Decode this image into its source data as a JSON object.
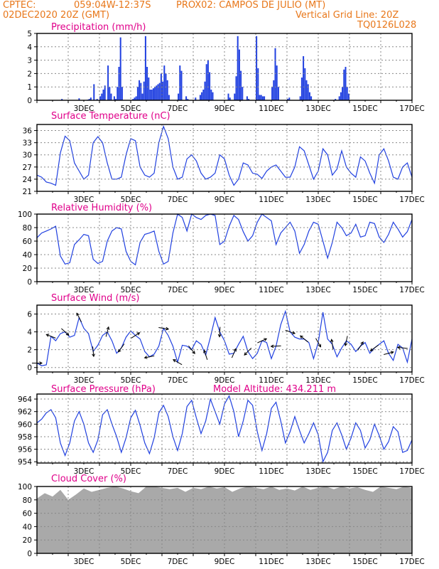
{
  "header": {
    "source": "CPTEC:",
    "coords": "059:04W-12:37S",
    "station": "PROX02: CAMPOS DE JULIO (MT)",
    "datetime": "02DEC2020 20Z (GMT)",
    "grid_note": "Vertical Grid Line: 20Z",
    "code": "TQ0126L028"
  },
  "x_labels": [
    "3DEC",
    "5DEC",
    "7DEC",
    "9DEC",
    "11DEC",
    "13DEC",
    "15DEC",
    "17DEC"
  ],
  "colors": {
    "header": "#e8771a",
    "title": "#e0008a",
    "series": "#2040e0",
    "cloud": "#a9a9a9",
    "grid": "#888888"
  },
  "chart_data": [
    {
      "type": "bar",
      "title": "Precipitation (mm/h)",
      "ylim": [
        0,
        5
      ],
      "yticks": [
        0,
        1,
        2,
        3,
        4,
        5
      ],
      "bars": [
        [
          1.6,
          0.1
        ],
        [
          2.7,
          0.15
        ],
        [
          3.25,
          0.05
        ],
        [
          3.35,
          0.1
        ],
        [
          3.45,
          0.2
        ],
        [
          3.65,
          1.2
        ],
        [
          3.85,
          0.1
        ],
        [
          4.05,
          0.3
        ],
        [
          4.15,
          0.5
        ],
        [
          4.25,
          0.8
        ],
        [
          4.35,
          1.1
        ],
        [
          4.55,
          2.6
        ],
        [
          4.65,
          1.0
        ],
        [
          4.75,
          0.5
        ],
        [
          4.95,
          0.3
        ],
        [
          5.05,
          0.1
        ],
        [
          5.15,
          1.0
        ],
        [
          5.25,
          2.5
        ],
        [
          5.35,
          4.7
        ],
        [
          5.45,
          1.0
        ],
        [
          6.15,
          0.1
        ],
        [
          6.25,
          0.2
        ],
        [
          6.35,
          0.3
        ],
        [
          6.45,
          1.0
        ],
        [
          6.55,
          1.5
        ],
        [
          6.65,
          1.3
        ],
        [
          6.75,
          0.5
        ],
        [
          6.85,
          1.4
        ],
        [
          6.95,
          4.8
        ],
        [
          7.05,
          2.5
        ],
        [
          7.15,
          1.7
        ],
        [
          7.25,
          0.8
        ],
        [
          7.35,
          0.8
        ],
        [
          7.45,
          0.9
        ],
        [
          7.55,
          1.0
        ],
        [
          7.65,
          1.1
        ],
        [
          7.75,
          1.2
        ],
        [
          7.85,
          1.3
        ],
        [
          7.95,
          2.0
        ],
        [
          8.05,
          1.4
        ],
        [
          8.15,
          2.6
        ],
        [
          8.25,
          2.0
        ],
        [
          8.35,
          1.5
        ],
        [
          8.45,
          0.4
        ],
        [
          9.05,
          0.5
        ],
        [
          9.15,
          2.6
        ],
        [
          9.25,
          2.2
        ],
        [
          9.55,
          0.3
        ],
        [
          9.65,
          0.1
        ],
        [
          10.15,
          0.2
        ],
        [
          10.45,
          0.4
        ],
        [
          10.55,
          0.6
        ],
        [
          10.65,
          0.8
        ],
        [
          10.75,
          1.4
        ],
        [
          10.85,
          2.7
        ],
        [
          10.95,
          3.0
        ],
        [
          11.05,
          2.1
        ],
        [
          11.15,
          0.8
        ],
        [
          11.25,
          0.6
        ],
        [
          12.25,
          0.5
        ],
        [
          12.35,
          0.2
        ],
        [
          12.65,
          0.5
        ],
        [
          12.75,
          1.8
        ],
        [
          12.85,
          4.8
        ],
        [
          12.95,
          3.8
        ],
        [
          13.05,
          2.2
        ],
        [
          13.15,
          1.0
        ],
        [
          13.45,
          0.3
        ],
        [
          13.55,
          0.1
        ],
        [
          14.05,
          4.8
        ],
        [
          14.15,
          2.4
        ],
        [
          14.25,
          0.4
        ],
        [
          14.35,
          0.4
        ],
        [
          14.45,
          0.3
        ],
        [
          14.55,
          0.3
        ],
        [
          15.05,
          1.0
        ],
        [
          15.15,
          1.5
        ],
        [
          15.25,
          3.9
        ],
        [
          15.35,
          2.6
        ],
        [
          15.45,
          1.0
        ],
        [
          16.05,
          0.1
        ],
        [
          16.15,
          0.2
        ],
        [
          16.85,
          0.3
        ],
        [
          16.95,
          1.7
        ],
        [
          17.05,
          3.3
        ],
        [
          17.15,
          2.4
        ],
        [
          17.25,
          1.5
        ],
        [
          17.35,
          1.2
        ],
        [
          17.45,
          0.6
        ],
        [
          17.55,
          0.3
        ],
        [
          19.1,
          0.1
        ],
        [
          19.35,
          0.3
        ],
        [
          19.45,
          0.6
        ],
        [
          19.55,
          1.0
        ],
        [
          19.65,
          2.3
        ],
        [
          19.75,
          2.5
        ],
        [
          19.85,
          1.0
        ],
        [
          19.95,
          0.5
        ]
      ]
    },
    {
      "type": "line",
      "title": "Surface Temperature (nC)",
      "ylim": [
        21,
        37.5
      ],
      "yticks": [
        21,
        24,
        27,
        30,
        33,
        36
      ],
      "x": [
        0.0,
        0.3,
        0.6,
        0.9,
        1.2,
        1.5,
        1.8,
        2.1,
        2.4,
        2.7,
        3.0,
        3.3,
        3.6,
        3.9,
        4.2,
        4.5,
        4.8,
        5.1,
        5.4,
        5.7,
        6.0,
        6.3,
        6.6,
        6.9,
        7.2,
        7.5,
        7.8,
        8.1,
        8.4,
        8.7,
        9.0,
        9.3,
        9.6,
        9.9,
        10.2,
        10.5,
        10.8,
        11.1,
        11.4,
        11.7,
        12.0,
        12.3,
        12.6,
        12.9,
        13.2,
        13.5,
        13.8,
        14.1,
        14.4,
        14.7,
        15.0,
        15.3,
        15.6,
        15.9,
        16.2,
        16.5,
        16.8,
        17.1,
        17.4,
        17.7,
        18.0,
        18.3,
        18.6,
        18.9,
        19.2,
        19.5,
        19.8,
        20.1,
        20.4,
        20.7,
        21.0,
        21.3,
        21.6,
        21.9,
        22.2,
        22.5,
        22.8,
        23.1,
        23.4,
        23.7,
        24.0
      ],
      "y": [
        25.0,
        24.5,
        23.3,
        23.0,
        22.5,
        30.5,
        34.6,
        33.5,
        28.0,
        26.0,
        24.0,
        25.0,
        33.0,
        34.5,
        33.0,
        28.0,
        24.0,
        24.0,
        24.5,
        30.0,
        34.0,
        33.5,
        27.0,
        25.0,
        24.5,
        25.5,
        33.0,
        37.0,
        34.0,
        27.0,
        24.0,
        24.5,
        29.0,
        30.0,
        28.5,
        25.5,
        24.0,
        24.5,
        25.5,
        30.0,
        29.0,
        25.0,
        22.5,
        24.0,
        28.0,
        27.5,
        25.5,
        25.2,
        24.2,
        26.0,
        27.0,
        27.5,
        26.0,
        24.5,
        24.5,
        27.0,
        32.0,
        31.0,
        27.5,
        24.0,
        26.0,
        31.5,
        30.0,
        25.0,
        26.5,
        31.0,
        27.0,
        25.5,
        24.5,
        29.5,
        28.5,
        25.5,
        23.0,
        30.0,
        31.5,
        28.5,
        24.5,
        24.0,
        27.0,
        28.0,
        24.5
      ]
    },
    {
      "type": "line",
      "title": "Relative Humidity (%)",
      "ylim": [
        0,
        100
      ],
      "yticks": [
        0,
        20,
        40,
        60,
        80,
        100
      ],
      "x": [
        0.0,
        0.3,
        0.6,
        0.9,
        1.2,
        1.5,
        1.8,
        2.1,
        2.4,
        2.7,
        3.0,
        3.3,
        3.6,
        3.9,
        4.2,
        4.5,
        4.8,
        5.1,
        5.4,
        5.7,
        6.0,
        6.3,
        6.6,
        6.9,
        7.2,
        7.5,
        7.8,
        8.1,
        8.4,
        8.7,
        9.0,
        9.3,
        9.6,
        9.9,
        10.2,
        10.5,
        10.8,
        11.1,
        11.4,
        11.7,
        12.0,
        12.3,
        12.6,
        12.9,
        13.2,
        13.5,
        13.8,
        14.1,
        14.4,
        14.7,
        15.0,
        15.3,
        15.6,
        15.9,
        16.2,
        16.5,
        16.8,
        17.1,
        17.4,
        17.7,
        18.0,
        18.3,
        18.6,
        18.9,
        19.2,
        19.5,
        19.8,
        20.1,
        20.4,
        20.7,
        21.0,
        21.3,
        21.6,
        21.9,
        22.2,
        22.5,
        22.8,
        23.1,
        23.4,
        23.7,
        24.0
      ],
      "y": [
        65,
        72,
        75,
        78,
        82,
        38,
        26,
        28,
        55,
        62,
        70,
        68,
        33,
        27,
        30,
        60,
        75,
        80,
        78,
        45,
        30,
        25,
        58,
        70,
        72,
        75,
        45,
        26,
        30,
        72,
        100,
        95,
        75,
        100,
        95,
        92,
        98,
        100,
        98,
        55,
        60,
        82,
        98,
        92,
        74,
        60,
        68,
        88,
        100,
        95,
        90,
        55,
        72,
        80,
        88,
        75,
        42,
        55,
        75,
        88,
        85,
        60,
        35,
        58,
        88,
        80,
        68,
        72,
        85,
        66,
        68,
        88,
        86,
        66,
        58,
        70,
        88,
        78,
        66,
        74,
        92
      ]
    },
    {
      "type": "line",
      "title": "Surface Wind (m/s)",
      "ylim": [
        -0.5,
        7
      ],
      "yticks": [
        0,
        2,
        4,
        6
      ],
      "x": [
        0.0,
        0.3,
        0.6,
        0.9,
        1.2,
        1.5,
        1.8,
        2.1,
        2.4,
        2.7,
        3.0,
        3.3,
        3.6,
        3.9,
        4.2,
        4.5,
        4.8,
        5.1,
        5.4,
        5.7,
        6.0,
        6.3,
        6.6,
        6.9,
        7.2,
        7.5,
        7.8,
        8.1,
        8.4,
        8.7,
        9.0,
        9.3,
        9.6,
        9.9,
        10.2,
        10.5,
        10.8,
        11.1,
        11.4,
        11.7,
        12.0,
        12.3,
        12.6,
        12.9,
        13.2,
        13.5,
        13.8,
        14.1,
        14.4,
        14.7,
        15.0,
        15.3,
        15.6,
        15.9,
        16.2,
        16.5,
        16.8,
        17.1,
        17.4,
        17.7,
        18.0,
        18.3,
        18.6,
        18.9,
        19.2,
        19.5,
        19.8,
        20.1,
        20.4,
        20.7,
        21.0,
        21.3,
        21.6,
        21.9,
        22.2,
        22.5,
        22.8,
        23.1,
        23.4,
        23.7,
        24.0
      ],
      "y": [
        0.5,
        0.2,
        0.3,
        3.5,
        3.0,
        3.8,
        4.0,
        3.4,
        3.6,
        5.6,
        4.4,
        3.8,
        1.8,
        2.5,
        3.6,
        4.0,
        3.0,
        1.6,
        2.2,
        3.4,
        4.1,
        3.6,
        3.2,
        1.8,
        1.2,
        1.5,
        2.4,
        4.4,
        3.6,
        2.4,
        0.6,
        2.5,
        2.4,
        2.0,
        3.0,
        2.6,
        1.4,
        3.4,
        5.6,
        4.0,
        3.0,
        1.5,
        1.6,
        2.6,
        3.5,
        1.8,
        1.0,
        1.6,
        3.0,
        2.8,
        1.0,
        2.4,
        4.8,
        6.3,
        4.0,
        3.4,
        3.2,
        3.2,
        2.8,
        1.0,
        2.8,
        6.2,
        3.2,
        2.6,
        1.2,
        2.2,
        3.0,
        2.6,
        1.8,
        2.4,
        2.8,
        1.6,
        2.2,
        2.6,
        3.0,
        1.6,
        0.8,
        2.6,
        2.2,
        0.6,
        3.2
      ]
    },
    {
      "type": "line",
      "title": "Surface Pressure (hPa)",
      "subtitle": "Model Altitude: 434.211 m",
      "ylim": [
        953.8,
        964.8
      ],
      "yticks": [
        954,
        956,
        958,
        960,
        962,
        964
      ],
      "x": [
        0.0,
        0.3,
        0.6,
        0.9,
        1.2,
        1.5,
        1.8,
        2.1,
        2.4,
        2.7,
        3.0,
        3.3,
        3.6,
        3.9,
        4.2,
        4.5,
        4.8,
        5.1,
        5.4,
        5.7,
        6.0,
        6.3,
        6.6,
        6.9,
        7.2,
        7.5,
        7.8,
        8.1,
        8.4,
        8.7,
        9.0,
        9.3,
        9.6,
        9.9,
        10.2,
        10.5,
        10.8,
        11.1,
        11.4,
        11.7,
        12.0,
        12.3,
        12.6,
        12.9,
        13.2,
        13.5,
        13.8,
        14.1,
        14.4,
        14.7,
        15.0,
        15.3,
        15.6,
        15.9,
        16.2,
        16.5,
        16.8,
        17.1,
        17.4,
        17.7,
        18.0,
        18.3,
        18.6,
        18.9,
        19.2,
        19.5,
        19.8,
        20.1,
        20.4,
        20.7,
        21.0,
        21.3,
        21.6,
        21.9,
        22.2,
        22.5,
        22.8,
        23.1,
        23.4,
        23.7,
        24.0
      ],
      "y": [
        960.2,
        960.8,
        961.8,
        962.3,
        961.0,
        957.0,
        955.0,
        957.0,
        960.5,
        962.0,
        960.0,
        957.0,
        955.5,
        957.5,
        961.5,
        962.3,
        960.0,
        958.0,
        955.5,
        957.8,
        961.0,
        962.2,
        959.8,
        957.0,
        955.3,
        957.8,
        961.8,
        963.0,
        961.2,
        958.0,
        955.8,
        958.5,
        962.8,
        963.8,
        961.0,
        958.5,
        960.5,
        964.0,
        962.0,
        960.0,
        963.2,
        964.5,
        962.0,
        958.0,
        960.5,
        963.8,
        963.0,
        958.8,
        955.8,
        958.5,
        962.5,
        963.5,
        960.5,
        957.0,
        958.8,
        961.2,
        959.0,
        957.0,
        958.5,
        960.2,
        958.3,
        954.0,
        955.5,
        959.0,
        960.2,
        958.3,
        956.0,
        957.8,
        960.2,
        959.0,
        956.2,
        957.5,
        960.0,
        958.2,
        956.0,
        957.2,
        959.6,
        958.8,
        955.5,
        955.8,
        957.5
      ]
    },
    {
      "type": "area",
      "title": "Cloud Cover (%)",
      "ylim": [
        0,
        100
      ],
      "yticks": [
        0,
        20,
        40,
        60,
        80,
        100
      ],
      "x": [
        0.0,
        0.5,
        1.0,
        1.5,
        2.0,
        2.5,
        3.0,
        3.5,
        4.0,
        4.5,
        5.0,
        5.5,
        6.0,
        6.5,
        7.0,
        7.5,
        8.0,
        8.5,
        9.0,
        9.5,
        10.0,
        10.5,
        11.0,
        11.5,
        12.0,
        12.5,
        13.0,
        13.5,
        14.0,
        14.5,
        15.0,
        15.5,
        16.0,
        16.5,
        17.0,
        17.5,
        18.0,
        18.5,
        19.0,
        19.5,
        20.0,
        20.5,
        21.0,
        21.5,
        22.0,
        22.5,
        23.0,
        23.5,
        24.0
      ],
      "y": [
        82,
        90,
        85,
        95,
        80,
        88,
        97,
        92,
        95,
        98,
        100,
        97,
        93,
        90,
        100,
        100,
        98,
        96,
        98,
        92,
        98,
        96,
        100,
        97,
        99,
        92,
        97,
        100,
        98,
        96,
        100,
        95,
        97,
        94,
        100,
        95,
        98,
        100,
        96,
        100,
        97,
        99,
        95,
        92,
        100,
        98,
        96,
        100,
        98
      ]
    }
  ]
}
